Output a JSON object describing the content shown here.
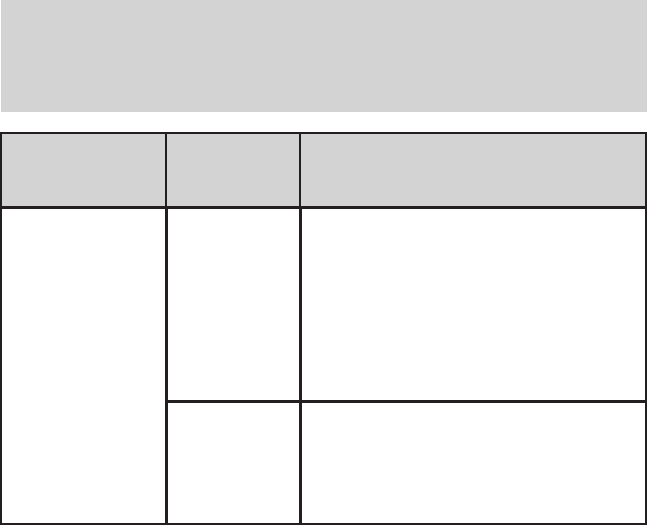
{
  "colors": {
    "fill": "#d3d3d3",
    "border": "#231f20"
  }
}
